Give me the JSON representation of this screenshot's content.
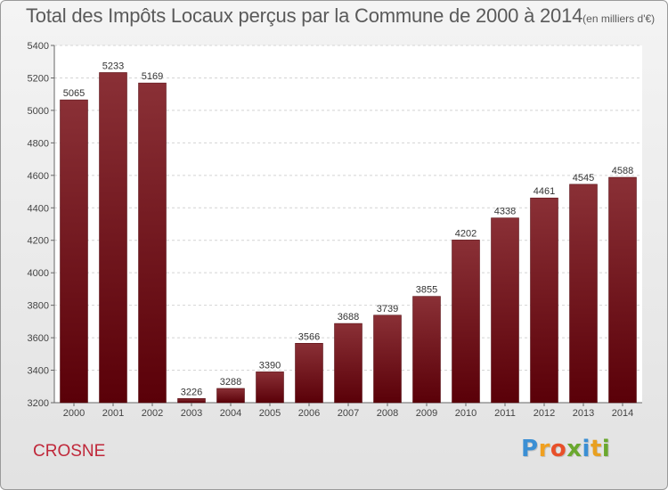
{
  "chart_data": {
    "type": "bar",
    "title": "Total des Impôts Locaux perçus par la Commune de 2000 à 2014",
    "subtitle": "(en milliers d'€)",
    "xlabel": "",
    "ylabel": "",
    "categories": [
      "2000",
      "2001",
      "2002",
      "2003",
      "2004",
      "2005",
      "2006",
      "2007",
      "2008",
      "2009",
      "2010",
      "2011",
      "2012",
      "2013",
      "2014"
    ],
    "values": [
      5065,
      5233,
      5169,
      3226,
      3288,
      3390,
      3566,
      3688,
      3739,
      3855,
      4202,
      4338,
      4461,
      4545,
      4588
    ],
    "ylim": [
      3200,
      5400
    ],
    "yticks": [
      3200,
      3400,
      3600,
      3800,
      4000,
      4200,
      4400,
      4600,
      4800,
      5000,
      5200,
      5400
    ],
    "grid": true,
    "bar_color": "#7a1c24"
  },
  "footer": {
    "commune": "CROSNE",
    "brand_letters": [
      {
        "ch": "P",
        "color": "#3b8fd4"
      },
      {
        "ch": "r",
        "color": "#f0a020"
      },
      {
        "ch": "o",
        "color": "#e8502a"
      },
      {
        "ch": "x",
        "color": "#6aa82e"
      },
      {
        "ch": "i",
        "color": "#3b8fd4"
      },
      {
        "ch": "t",
        "color": "#e8a020"
      },
      {
        "ch": "i",
        "color": "#6aa82e"
      }
    ]
  }
}
